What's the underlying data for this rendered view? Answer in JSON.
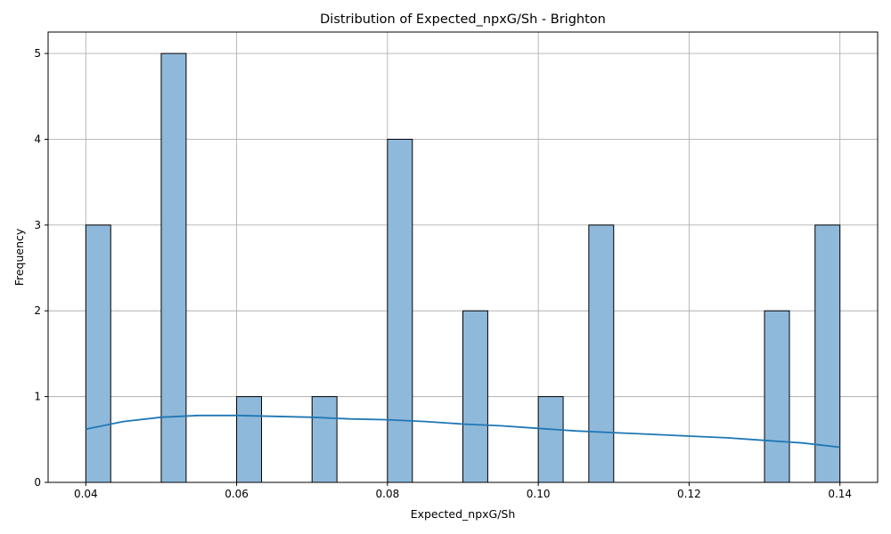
{
  "chart_data": {
    "type": "bar",
    "title": "Distribution of Expected_npxG/Sh - Brighton",
    "xlabel": "Expected_npxG/Sh",
    "ylabel": "Frequency",
    "xlim": [
      0.035,
      0.145
    ],
    "ylim": [
      0,
      5.25
    ],
    "x_ticks": [
      "0.04",
      "0.06",
      "0.08",
      "0.10",
      "0.12",
      "0.14"
    ],
    "y_ticks": [
      "0",
      "1",
      "2",
      "3",
      "4",
      "5"
    ],
    "grid": true,
    "bin_width": 0.00333,
    "bins": [
      {
        "x0": 0.04,
        "x1": 0.0433,
        "count": 3
      },
      {
        "x0": 0.05,
        "x1": 0.0533,
        "count": 5
      },
      {
        "x0": 0.06,
        "x1": 0.0633,
        "count": 1
      },
      {
        "x0": 0.07,
        "x1": 0.0733,
        "count": 1
      },
      {
        "x0": 0.08,
        "x1": 0.0833,
        "count": 4
      },
      {
        "x0": 0.09,
        "x1": 0.0933,
        "count": 2
      },
      {
        "x0": 0.1,
        "x1": 0.1033,
        "count": 1
      },
      {
        "x0": 0.1067,
        "x1": 0.11,
        "count": 3
      },
      {
        "x0": 0.13,
        "x1": 0.1333,
        "count": 2
      },
      {
        "x0": 0.1367,
        "x1": 0.14,
        "count": 3
      }
    ],
    "kde": {
      "x": [
        0.04,
        0.045,
        0.05,
        0.055,
        0.06,
        0.065,
        0.07,
        0.075,
        0.08,
        0.085,
        0.09,
        0.095,
        0.1,
        0.105,
        0.11,
        0.115,
        0.12,
        0.125,
        0.13,
        0.135,
        0.14
      ],
      "y": [
        0.62,
        0.71,
        0.76,
        0.78,
        0.78,
        0.77,
        0.76,
        0.74,
        0.73,
        0.71,
        0.68,
        0.66,
        0.63,
        0.6,
        0.58,
        0.56,
        0.54,
        0.52,
        0.49,
        0.46,
        0.41
      ]
    },
    "colors": {
      "bar_fill": "#8fb9db",
      "bar_edge": "#000000",
      "kde_line": "#1f77b4",
      "grid": "#b0b0b0"
    }
  }
}
